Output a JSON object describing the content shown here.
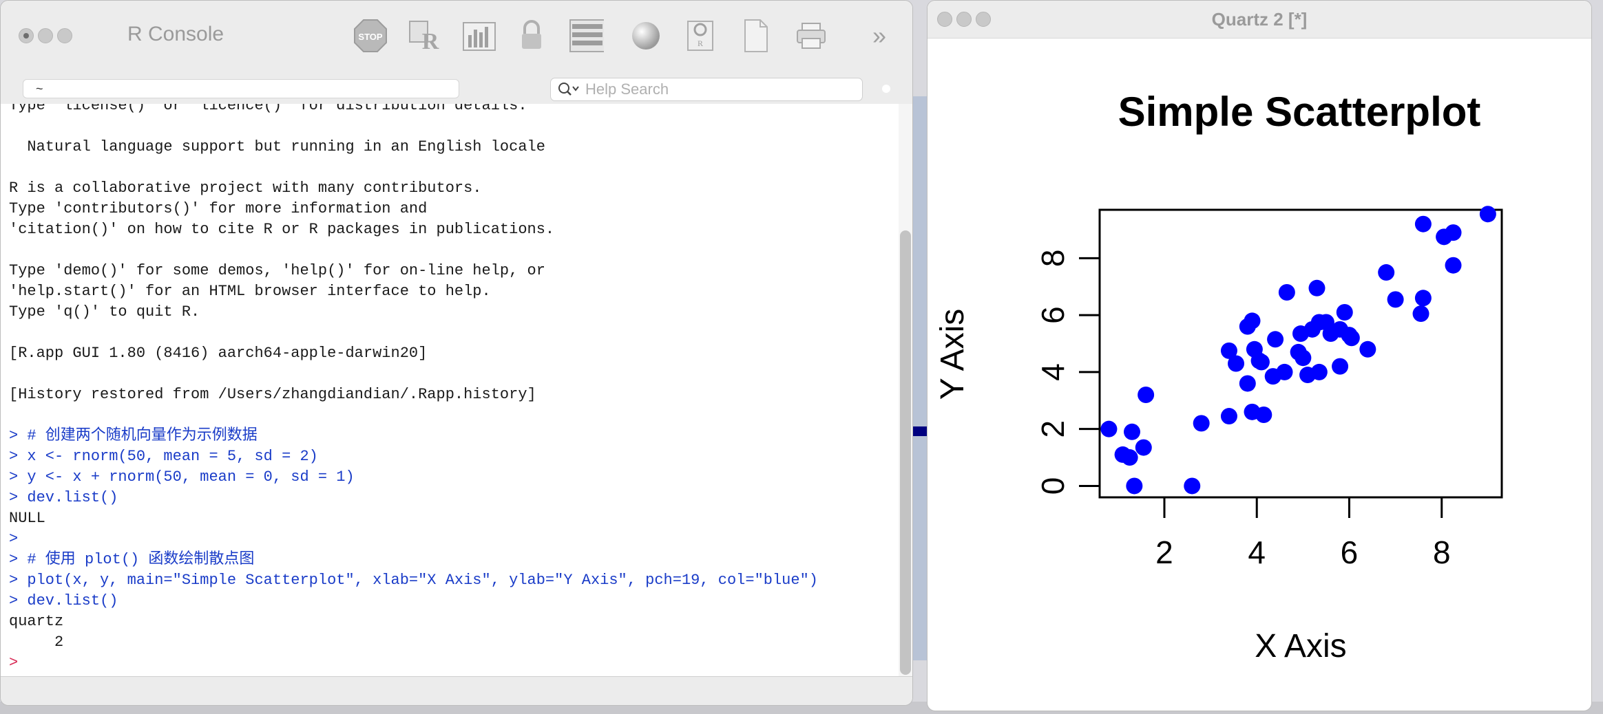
{
  "console": {
    "title": "R Console",
    "toolbar_icons": [
      "stop-icon",
      "r-source-icon",
      "bar-chart-icon",
      "lock-icon",
      "list-icon",
      "color-ball-icon",
      "package-icon",
      "new-document-icon",
      "print-icon"
    ],
    "stop_label": "STOP",
    "overflow_label": "»",
    "path_value": "~",
    "search_placeholder": "Help Search",
    "lines": [
      {
        "text": "Type 'license()' or 'licence()' for distribution details.",
        "kind": "black"
      },
      {
        "text": "",
        "kind": "black"
      },
      {
        "text": "  Natural language support but running in an English locale",
        "kind": "black"
      },
      {
        "text": "",
        "kind": "black"
      },
      {
        "text": "R is a collaborative project with many contributors.",
        "kind": "black"
      },
      {
        "text": "Type 'contributors()' for more information and",
        "kind": "black"
      },
      {
        "text": "'citation()' on how to cite R or R packages in publications.",
        "kind": "black"
      },
      {
        "text": "",
        "kind": "black"
      },
      {
        "text": "Type 'demo()' for some demos, 'help()' for on-line help, or",
        "kind": "black"
      },
      {
        "text": "'help.start()' for an HTML browser interface to help.",
        "kind": "black"
      },
      {
        "text": "Type 'q()' to quit R.",
        "kind": "black"
      },
      {
        "text": "",
        "kind": "black"
      },
      {
        "text": "[R.app GUI 1.80 (8416) aarch64-apple-darwin20]",
        "kind": "black"
      },
      {
        "text": "",
        "kind": "black"
      },
      {
        "text": "[History restored from /Users/zhangdiandian/.Rapp.history]",
        "kind": "black"
      },
      {
        "text": "",
        "kind": "black"
      },
      {
        "text": "> # 创建两个随机向量作为示例数据",
        "kind": "blue"
      },
      {
        "text": "> x <- rnorm(50, mean = 5, sd = 2)",
        "kind": "blue"
      },
      {
        "text": "> y <- x + rnorm(50, mean = 0, sd = 1)",
        "kind": "blue"
      },
      {
        "text": "> dev.list()",
        "kind": "blue"
      },
      {
        "text": "NULL",
        "kind": "black"
      },
      {
        "text": ">",
        "kind": "blue"
      },
      {
        "text": "> # 使用 plot() 函数绘制散点图",
        "kind": "blue"
      },
      {
        "text": "> plot(x, y, main=\"Simple Scatterplot\", xlab=\"X Axis\", ylab=\"Y Axis\", pch=19, col=\"blue\")",
        "kind": "blue"
      },
      {
        "text": "> dev.list()",
        "kind": "blue"
      },
      {
        "text": "quartz",
        "kind": "black"
      },
      {
        "text": "     2",
        "kind": "black"
      },
      {
        "text": ">",
        "kind": "prompt"
      }
    ]
  },
  "quartz": {
    "title": "Quartz 2 [*]"
  },
  "chart_data": {
    "type": "scatter",
    "title": "Simple Scatterplot",
    "xlabel": "X Axis",
    "ylabel": "Y Axis",
    "xlim": [
      0.6,
      9.3
    ],
    "ylim": [
      -0.4,
      9.7
    ],
    "xticks": [
      2,
      4,
      6,
      8
    ],
    "yticks": [
      0,
      2,
      4,
      6,
      8
    ],
    "color": "#0000ff",
    "grid": false,
    "points": [
      [
        0.8,
        2.0
      ],
      [
        1.1,
        1.1
      ],
      [
        1.25,
        1.0
      ],
      [
        1.3,
        1.9
      ],
      [
        1.35,
        0.0
      ],
      [
        1.55,
        1.35
      ],
      [
        1.6,
        3.2
      ],
      [
        2.6,
        0.0
      ],
      [
        2.8,
        2.2
      ],
      [
        3.4,
        2.45
      ],
      [
        3.4,
        4.75
      ],
      [
        3.55,
        4.3
      ],
      [
        3.8,
        3.6
      ],
      [
        3.8,
        5.6
      ],
      [
        3.9,
        5.8
      ],
      [
        3.9,
        2.6
      ],
      [
        3.95,
        4.8
      ],
      [
        4.05,
        4.4
      ],
      [
        4.1,
        4.35
      ],
      [
        4.15,
        2.5
      ],
      [
        4.35,
        3.85
      ],
      [
        4.4,
        5.15
      ],
      [
        4.6,
        4.0
      ],
      [
        4.65,
        6.8
      ],
      [
        4.9,
        4.7
      ],
      [
        4.95,
        5.35
      ],
      [
        5.0,
        4.5
      ],
      [
        5.1,
        3.9
      ],
      [
        5.2,
        5.5
      ],
      [
        5.3,
        6.95
      ],
      [
        5.35,
        5.75
      ],
      [
        5.35,
        4.0
      ],
      [
        5.5,
        5.75
      ],
      [
        5.6,
        5.35
      ],
      [
        5.8,
        4.2
      ],
      [
        5.8,
        5.5
      ],
      [
        5.9,
        6.1
      ],
      [
        6.0,
        5.3
      ],
      [
        6.05,
        5.2
      ],
      [
        6.4,
        4.8
      ],
      [
        6.8,
        7.5
      ],
      [
        7.0,
        6.55
      ],
      [
        7.55,
        6.05
      ],
      [
        7.6,
        6.6
      ],
      [
        7.6,
        9.2
      ],
      [
        8.05,
        8.75
      ],
      [
        8.25,
        8.9
      ],
      [
        8.25,
        7.75
      ],
      [
        9.0,
        9.55
      ]
    ]
  }
}
